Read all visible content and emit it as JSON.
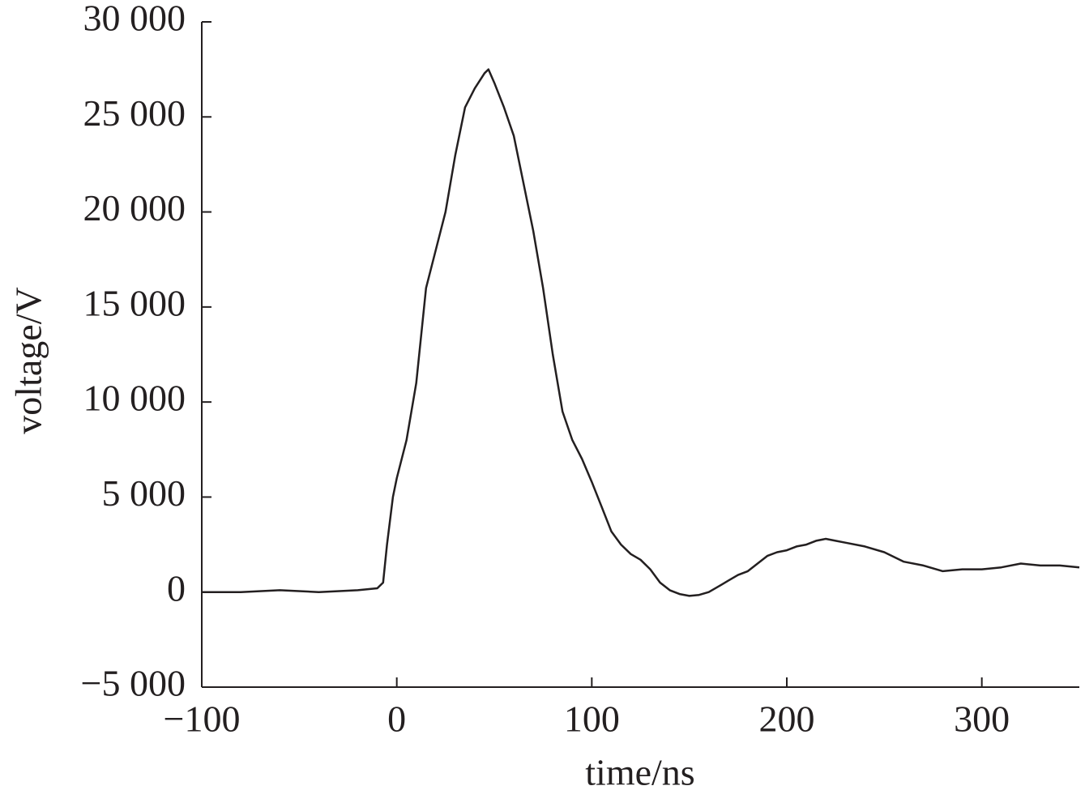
{
  "chart_data": {
    "type": "line",
    "x_label": "time/ns",
    "y_label": "voltage/V",
    "x": [
      -100,
      -80,
      -60,
      -40,
      -20,
      -10,
      -7,
      -5,
      -2,
      0,
      5,
      10,
      15,
      20,
      25,
      30,
      35,
      40,
      45,
      47,
      50,
      55,
      60,
      65,
      70,
      75,
      80,
      85,
      90,
      95,
      100,
      105,
      110,
      115,
      120,
      125,
      130,
      135,
      140,
      145,
      150,
      155,
      160,
      165,
      170,
      175,
      180,
      185,
      190,
      195,
      200,
      205,
      210,
      215,
      220,
      225,
      230,
      240,
      250,
      260,
      270,
      280,
      290,
      300,
      310,
      320,
      330,
      340,
      350
    ],
    "series": [
      {
        "name": "voltage",
        "color": "#231f20",
        "values": [
          0,
          0,
          100,
          0,
          100,
          200,
          500,
          2500,
          5000,
          6000,
          8000,
          11000,
          16000,
          18000,
          20000,
          23000,
          25500,
          26500,
          27300,
          27500,
          26800,
          25500,
          24000,
          21500,
          19000,
          16000,
          12500,
          9500,
          8000,
          7000,
          5800,
          4500,
          3200,
          2500,
          2000,
          1700,
          1200,
          500,
          100,
          -100,
          -200,
          -150,
          0,
          300,
          600,
          900,
          1100,
          1500,
          1900,
          2100,
          2200,
          2400,
          2500,
          2700,
          2800,
          2700,
          2600,
          2400,
          2100,
          1600,
          1400,
          1100,
          1200,
          1200,
          1300,
          1500,
          1400,
          1400,
          1300
        ]
      }
    ],
    "xlim": [
      -100,
      350
    ],
    "xticks": [
      {
        "value": -100,
        "label": "−100"
      },
      0,
      100,
      200,
      300
    ],
    "ylim": [
      -5000,
      30000
    ],
    "yticks": [
      {
        "value": -5000,
        "label": "−5 000"
      },
      0,
      {
        "value": 5000,
        "label": "5 000"
      },
      {
        "value": 10000,
        "label": "10 000"
      },
      {
        "value": 15000,
        "label": "15 000"
      },
      {
        "value": 20000,
        "label": "20 000"
      },
      {
        "value": 25000,
        "label": "25 000"
      },
      {
        "value": 30000,
        "label": "30 000"
      }
    ],
    "grid": false
  }
}
